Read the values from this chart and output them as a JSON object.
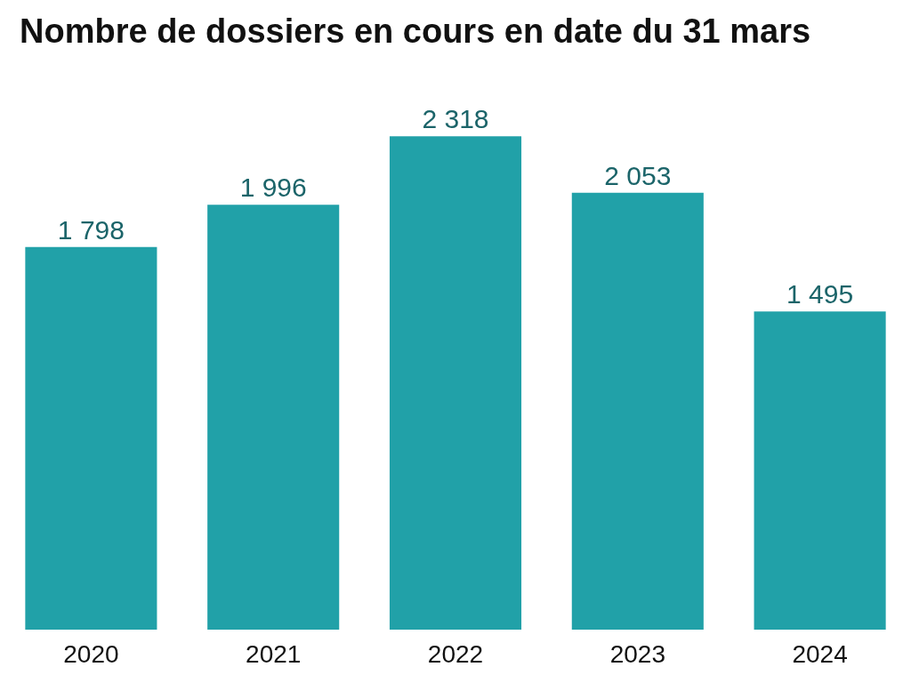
{
  "chart_data": {
    "type": "bar",
    "title": "Nombre de dossiers en cours en date du 31 mars",
    "categories": [
      "2020",
      "2021",
      "2022",
      "2023",
      "2024"
    ],
    "values": [
      1798,
      1996,
      2318,
      2053,
      1495
    ],
    "value_labels": [
      "1 798",
      "1 996",
      "2 318",
      "2 053",
      "1 495"
    ],
    "color": "#21a1a8"
  }
}
